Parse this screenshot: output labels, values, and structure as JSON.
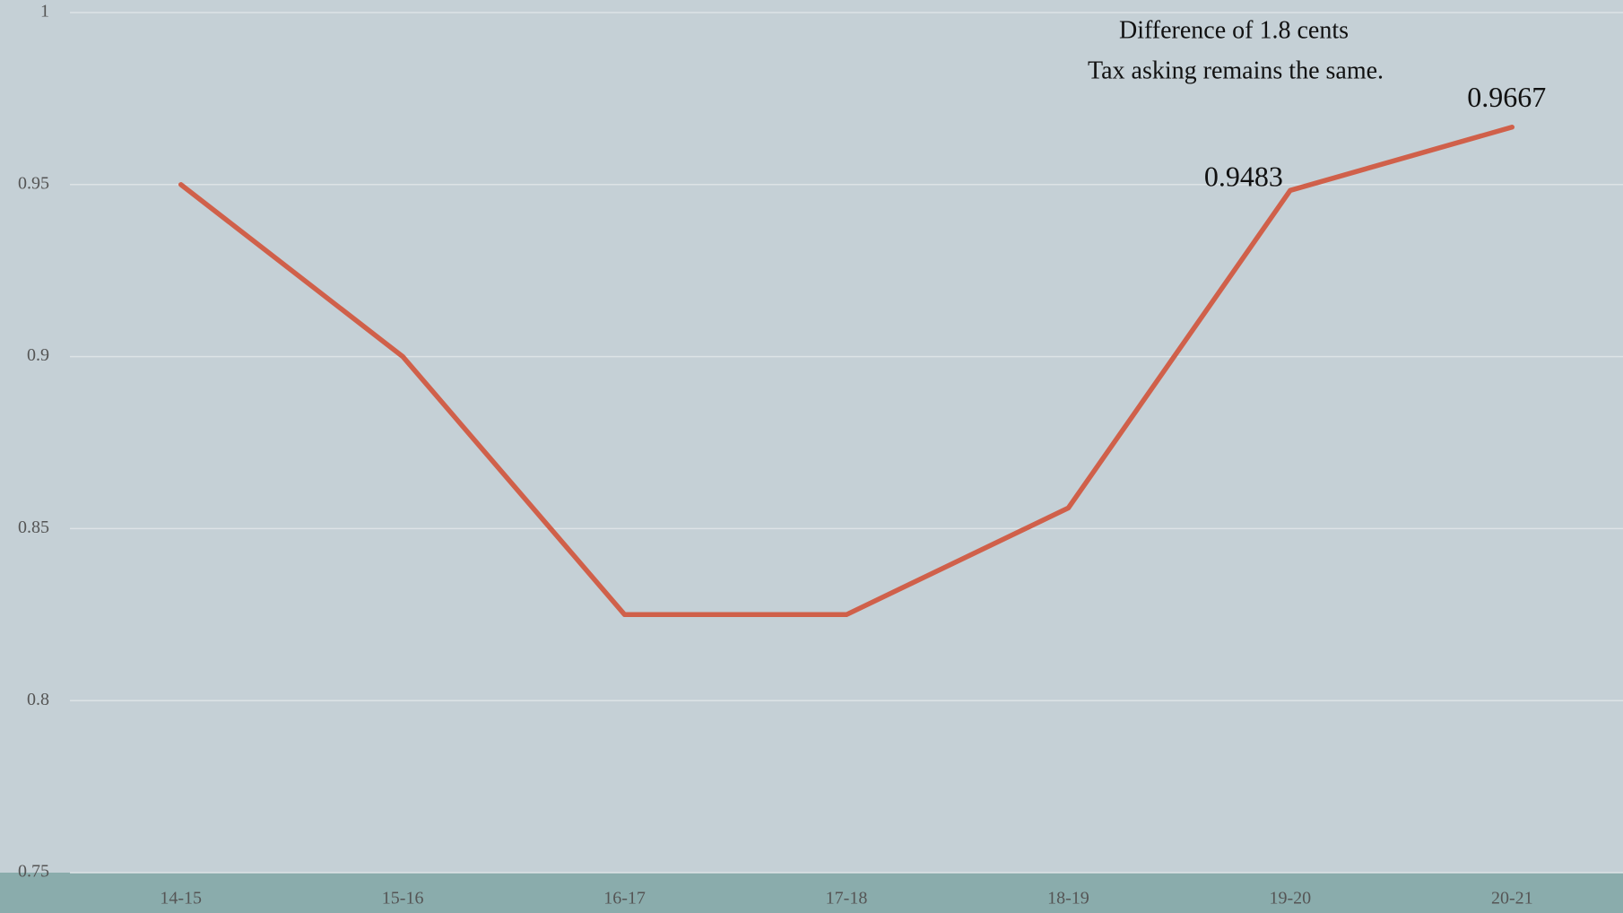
{
  "chart_data": {
    "type": "line",
    "annotations": [
      "Difference of 1.8 cents",
      "Tax asking remains the same."
    ],
    "categories": [
      "14-15",
      "15-16",
      "16-17",
      "17-18",
      "18-19",
      "19-20",
      "20-21"
    ],
    "series": [
      {
        "name": null,
        "color": "#d0604a",
        "values": [
          0.95,
          0.9,
          0.825,
          0.825,
          0.856,
          0.9483,
          0.9667
        ],
        "value_labels": [
          null,
          null,
          null,
          null,
          null,
          "0.9483",
          "0.9667"
        ]
      }
    ],
    "ylim": [
      0.75,
      1
    ],
    "yticks": [
      0.75,
      0.8,
      0.85,
      0.9,
      0.95,
      1
    ],
    "grid": true
  }
}
